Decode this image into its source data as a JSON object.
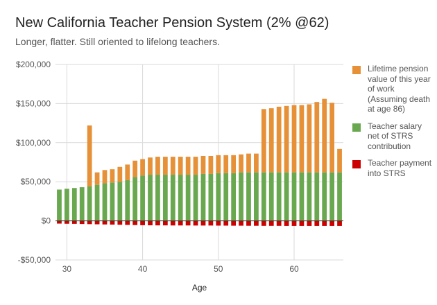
{
  "chart_data": {
    "type": "bar",
    "stacked": true,
    "title": "New California Teacher Pension System (2% @62)",
    "subtitle": "Longer, flatter. Still oriented to lifelong teachers.",
    "xlabel": "Age",
    "ylabel": "",
    "ylim": [
      -50000,
      200000
    ],
    "yticks": [
      -50000,
      0,
      50000,
      100000,
      150000,
      200000
    ],
    "ytick_labels": [
      "-$50,000",
      "$0",
      "$50,000",
      "$100,000",
      "$150,000",
      "$200,000"
    ],
    "xlim": [
      28.5,
      66.5
    ],
    "xticks": [
      30,
      40,
      50,
      60
    ],
    "xtick_labels": [
      "30",
      "40",
      "50",
      "60"
    ],
    "grid": true,
    "legend_position": "right",
    "x": [
      29,
      30,
      31,
      32,
      33,
      34,
      35,
      36,
      37,
      38,
      39,
      40,
      41,
      42,
      43,
      44,
      45,
      46,
      47,
      48,
      49,
      50,
      51,
      52,
      53,
      54,
      55,
      56,
      57,
      58,
      59,
      60,
      61,
      62,
      63,
      64,
      65,
      66
    ],
    "series": [
      {
        "name": "Teacher salary net of STRS contribution",
        "color": "#6aa84f",
        "values": [
          40000,
          41000,
          42000,
          43000,
          44000,
          46000,
          48000,
          49000,
          50000,
          52000,
          56000,
          58000,
          59000,
          59000,
          59000,
          59000,
          59000,
          59000,
          59000,
          60000,
          60000,
          61000,
          61000,
          61000,
          62000,
          62000,
          62000,
          62000,
          62000,
          62000,
          62000,
          62000,
          62000,
          62000,
          62000,
          62000,
          62000,
          62000
        ]
      },
      {
        "name": "Lifetime pension value of this year of work (Assuming death at age 86)",
        "color": "#e69138",
        "values": [
          0,
          0,
          0,
          0,
          78000,
          16000,
          17000,
          17000,
          19000,
          20000,
          21000,
          21000,
          22000,
          23000,
          23000,
          23000,
          23000,
          23000,
          23000,
          23000,
          23000,
          23000,
          23000,
          23000,
          23000,
          24000,
          24000,
          81000,
          82000,
          84000,
          85000,
          86000,
          86000,
          87000,
          90000,
          94000,
          89000,
          30000
        ]
      },
      {
        "name": "Teacher payment into STRS",
        "color": "#cc0000",
        "values": [
          -3500,
          -3700,
          -3800,
          -4000,
          -4200,
          -4400,
          -4600,
          -4800,
          -5000,
          -5200,
          -5400,
          -5600,
          -5700,
          -5800,
          -5800,
          -5900,
          -5900,
          -5900,
          -6000,
          -6000,
          -6000,
          -6100,
          -6100,
          -6200,
          -6200,
          -6300,
          -6300,
          -6400,
          -6400,
          -6400,
          -6500,
          -6500,
          -6500,
          -6500,
          -6500,
          -6500,
          -6500,
          -6500
        ]
      }
    ]
  }
}
